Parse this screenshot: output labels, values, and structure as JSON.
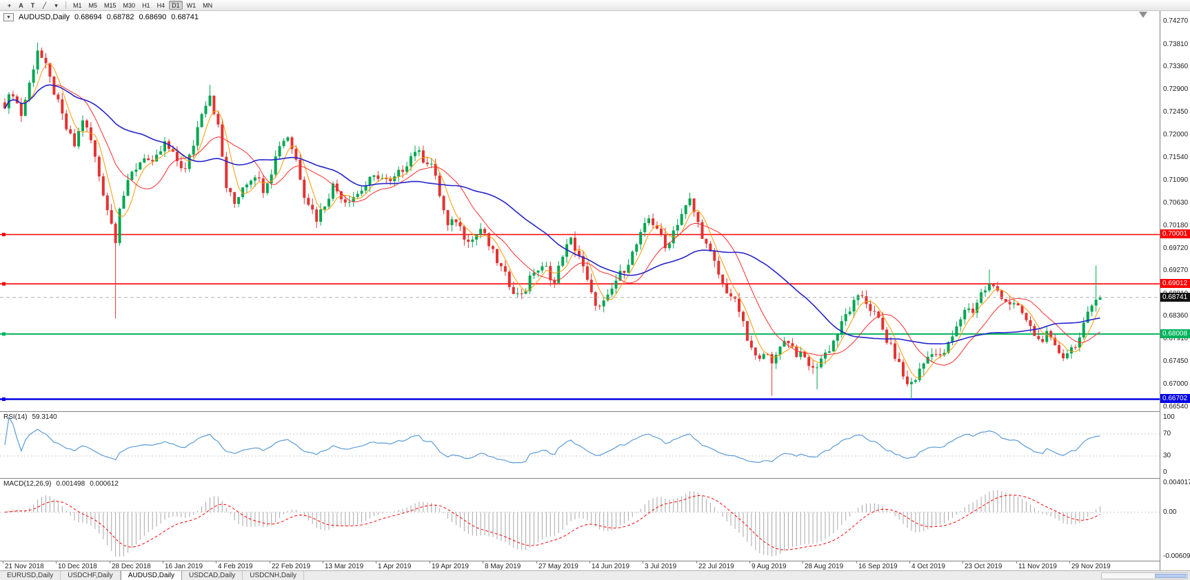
{
  "toolbar": {
    "tools": [
      {
        "id": "crosshair",
        "glyph": "+"
      },
      {
        "id": "text-annotation",
        "glyph": "A"
      },
      {
        "id": "text-label",
        "glyph": "T"
      },
      {
        "id": "line-studies",
        "glyph": "╱"
      },
      {
        "id": "line-studies-dropdown",
        "glyph": "▾"
      }
    ],
    "timeframes": [
      "M1",
      "M5",
      "M15",
      "M30",
      "H1",
      "H4",
      "D1",
      "W1",
      "MN"
    ],
    "active_timeframe": "D1"
  },
  "chart": {
    "header": {
      "dropdown_glyph": "▼",
      "symbol": "AUDUSD,Daily",
      "open": "0.68694",
      "high": "0.68782",
      "low": "0.68690",
      "close": "0.68741"
    },
    "price_axis": [
      "0.74270",
      "0.73810",
      "0.73360",
      "0.72900",
      "0.72450",
      "0.72000",
      "0.71540",
      "0.71090",
      "0.70630",
      "0.70180",
      "0.69720",
      "0.69270",
      "0.68810",
      "0.68360",
      "0.67910",
      "0.67450",
      "0.67000",
      "0.66540"
    ],
    "current_price_label": "0.68741"
  },
  "rsi_panel": {
    "name": "RSI(14)",
    "value": "59.3140",
    "scale_labels": [
      "100",
      "70",
      "30",
      "0"
    ]
  },
  "macd_panel": {
    "name": "MACD(12,26,9)",
    "macd_value": "0.001498",
    "signal_value": "0.000612",
    "scale_labels": [
      "0.004017",
      "0.00",
      "-0.00609"
    ]
  },
  "tab_bar": {
    "tabs": [
      {
        "label": "EURUSD,Daily",
        "active": false
      },
      {
        "label": "USDCHF,Daily",
        "active": false
      },
      {
        "label": "AUDUSD,Daily",
        "active": true
      },
      {
        "label": "USDCAD,Daily",
        "active": false
      },
      {
        "label": "USDCNH,Daily",
        "active": false
      }
    ]
  },
  "chart_data": {
    "type": "candlestick",
    "symbol": "AUDUSD",
    "timeframe": "Daily",
    "price_top": 0.7448,
    "price_bottom": 0.6646,
    "candle_count": 268,
    "candle_spacing": 5.95,
    "body_width": 4,
    "noise_amp": 0.0009,
    "wick_amp": 0.0013,
    "close_anchors": [
      [
        0,
        0.7262
      ],
      [
        2,
        0.7285
      ],
      [
        4,
        0.724
      ],
      [
        6,
        0.7302
      ],
      [
        8,
        0.7372
      ],
      [
        10,
        0.7335
      ],
      [
        13,
        0.7262
      ],
      [
        15,
        0.7212
      ],
      [
        17,
        0.7178
      ],
      [
        19,
        0.7232
      ],
      [
        21,
        0.7188
      ],
      [
        23,
        0.7118
      ],
      [
        25,
        0.7052
      ],
      [
        27,
        0.6992
      ],
      [
        28,
        0.7058
      ],
      [
        31,
        0.7122
      ],
      [
        34,
        0.7158
      ],
      [
        36,
        0.7138
      ],
      [
        39,
        0.7182
      ],
      [
        41,
        0.7158
      ],
      [
        44,
        0.7128
      ],
      [
        46,
        0.7182
      ],
      [
        48,
        0.7248
      ],
      [
        50,
        0.7282
      ],
      [
        52,
        0.7215
      ],
      [
        54,
        0.7095
      ],
      [
        56,
        0.7062
      ],
      [
        58,
        0.7098
      ],
      [
        61,
        0.7122
      ],
      [
        63,
        0.7092
      ],
      [
        65,
        0.7128
      ],
      [
        67,
        0.7182
      ],
      [
        69,
        0.7198
      ],
      [
        71,
        0.715
      ],
      [
        73,
        0.7082
      ],
      [
        76,
        0.7032
      ],
      [
        78,
        0.7062
      ],
      [
        80,
        0.7098
      ],
      [
        83,
        0.7068
      ],
      [
        86,
        0.7082
      ],
      [
        89,
        0.7108
      ],
      [
        91,
        0.7118
      ],
      [
        94,
        0.7102
      ],
      [
        97,
        0.7132
      ],
      [
        100,
        0.717
      ],
      [
        102,
        0.7152
      ],
      [
        104,
        0.7142
      ],
      [
        106,
        0.708
      ],
      [
        108,
        0.7015
      ],
      [
        110,
        0.703
      ],
      [
        112,
        0.6998
      ],
      [
        114,
        0.699
      ],
      [
        116,
        0.7012
      ],
      [
        119,
        0.6962
      ],
      [
        121,
        0.6932
      ],
      [
        123,
        0.6902
      ],
      [
        125,
        0.6878
      ],
      [
        127,
        0.6892
      ],
      [
        129,
        0.6928
      ],
      [
        132,
        0.6932
      ],
      [
        134,
        0.6902
      ],
      [
        136,
        0.6962
      ],
      [
        138,
        0.6988
      ],
      [
        140,
        0.6958
      ],
      [
        143,
        0.6878
      ],
      [
        145,
        0.6852
      ],
      [
        147,
        0.6872
      ],
      [
        149,
        0.6908
      ],
      [
        151,
        0.6932
      ],
      [
        153,
        0.6962
      ],
      [
        155,
        0.6998
      ],
      [
        157,
        0.7032
      ],
      [
        159,
        0.7015
      ],
      [
        161,
        0.6972
      ],
      [
        163,
        0.7008
      ],
      [
        165,
        0.7042
      ],
      [
        167,
        0.7068
      ],
      [
        169,
        0.7022
      ],
      [
        171,
        0.6978
      ],
      [
        173,
        0.6942
      ],
      [
        175,
        0.6898
      ],
      [
        177,
        0.6878
      ],
      [
        179,
        0.6848
      ],
      [
        181,
        0.6788
      ],
      [
        183,
        0.6752
      ],
      [
        185,
        0.6768
      ],
      [
        187,
        0.6738
      ],
      [
        189,
        0.6782
      ],
      [
        191,
        0.6788
      ],
      [
        193,
        0.6762
      ],
      [
        195,
        0.6752
      ],
      [
        197,
        0.6728
      ],
      [
        199,
        0.6752
      ],
      [
        201,
        0.6772
      ],
      [
        203,
        0.6802
      ],
      [
        205,
        0.6838
      ],
      [
        207,
        0.6862
      ],
      [
        209,
        0.6878
      ],
      [
        211,
        0.6852
      ],
      [
        213,
        0.6828
      ],
      [
        215,
        0.6788
      ],
      [
        217,
        0.6758
      ],
      [
        219,
        0.6718
      ],
      [
        220,
        0.6698
      ],
      [
        222,
        0.6712
      ],
      [
        224,
        0.6742
      ],
      [
        226,
        0.6768
      ],
      [
        228,
        0.6752
      ],
      [
        230,
        0.6778
      ],
      [
        232,
        0.6812
      ],
      [
        234,
        0.6852
      ],
      [
        236,
        0.6848
      ],
      [
        238,
        0.6882
      ],
      [
        240,
        0.6898
      ],
      [
        242,
        0.6888
      ],
      [
        244,
        0.6868
      ],
      [
        246,
        0.6858
      ],
      [
        248,
        0.6842
      ],
      [
        250,
        0.6812
      ],
      [
        252,
        0.6788
      ],
      [
        254,
        0.6798
      ],
      [
        256,
        0.6772
      ],
      [
        258,
        0.6758
      ],
      [
        260,
        0.6772
      ],
      [
        262,
        0.6792
      ],
      [
        264,
        0.6838
      ],
      [
        266,
        0.6878
      ],
      [
        267,
        0.68741
      ]
    ],
    "special_wicks": [
      {
        "i": 8,
        "h": 0.7385
      },
      {
        "i": 27,
        "l": 0.6832
      },
      {
        "i": 50,
        "h": 0.73
      },
      {
        "i": 187,
        "l": 0.6677
      },
      {
        "i": 198,
        "l": 0.669
      },
      {
        "i": 221,
        "l": 0.667
      },
      {
        "i": 240,
        "h": 0.693
      },
      {
        "i": 266,
        "h": 0.6938
      }
    ],
    "last_candle": {
      "o": 0.68694,
      "h": 0.68782,
      "l": 0.6869,
      "c": 0.68741
    },
    "up_color": "#00a651",
    "down_color": "#e23333",
    "moving_averages": [
      {
        "period": 5,
        "color": "#ff9900",
        "width": 1
      },
      {
        "period": 13,
        "color": "#ff2a2a",
        "width": 1
      },
      {
        "period": 34,
        "color": "#2323cc",
        "width": 1.6
      }
    ],
    "levels": [
      {
        "price": 0.70001,
        "label": "0.70001",
        "color": "#ff0000",
        "width": 1.6
      },
      {
        "price": 0.69012,
        "label": "0.69012",
        "color": "#ff0000",
        "width": 1.6
      },
      {
        "price": 0.68008,
        "label": "0.68008",
        "color": "#00b25b",
        "width": 2
      },
      {
        "price": 0.66702,
        "label": "0.66702",
        "color": "#0000e6",
        "width": 2.6
      }
    ],
    "current_price": 0.68741,
    "rsi": {
      "period": 14,
      "color": "#5b9bd5",
      "overbought": 70,
      "oversold": 30,
      "current": 59.314
    },
    "macd": {
      "fast": 12,
      "slow": 26,
      "signal": 9,
      "current_macd": 0.001498,
      "current_signal": 0.000612,
      "scale_max": 0.004017,
      "scale_min": -0.006091,
      "histogram_color": "#a6a6a6",
      "signal_color": "#ff0000"
    },
    "x_labels": [
      "21 Nov 2018",
      "10 Dec 2018",
      "28 Dec 2018",
      "16 Jan 2019",
      "4 Feb 2019",
      "22 Feb 2019",
      "13 Mar 2019",
      "1 Apr 2019",
      "19 Apr 2019",
      "8 May 2019",
      "27 May 2019",
      "14 Jun 2019",
      "3 Jul 2019",
      "22 Jul 2019",
      "9 Aug 2019",
      "28 Aug 2019",
      "16 Sep 2019",
      "4 Oct 2019",
      "23 Oct 2019",
      "11 Nov 2019",
      "29 Nov 2019"
    ],
    "x_label_step": 13
  }
}
